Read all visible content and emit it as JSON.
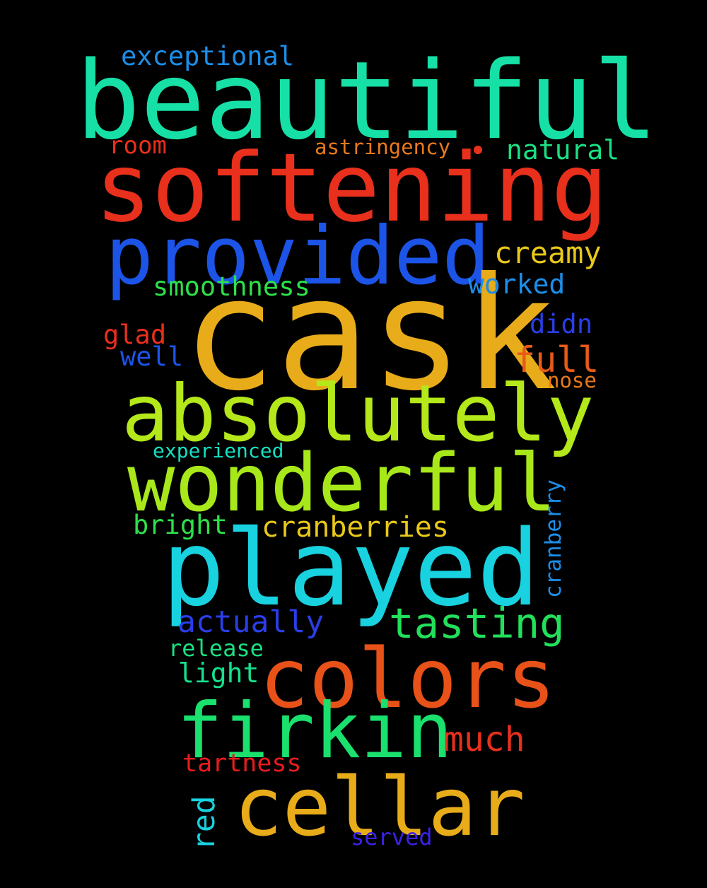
{
  "words": [
    {
      "text": "beautiful",
      "color": "#16e0a6"
    },
    {
      "text": "softening",
      "color": "#e8301c"
    },
    {
      "text": "provided",
      "color": "#1c54e8"
    },
    {
      "text": "cask",
      "color": "#e8ac1a"
    },
    {
      "text": "absolutely",
      "color": "#b4e81a"
    },
    {
      "text": "wonderful",
      "color": "#a8e81a"
    },
    {
      "text": "played",
      "color": "#18d2e0"
    },
    {
      "text": "colors",
      "color": "#e85218"
    },
    {
      "text": "firkin",
      "color": "#1ae06e"
    },
    {
      "text": "cellar",
      "color": "#e8ac1a"
    },
    {
      "text": "tasting",
      "color": "#22e05a"
    },
    {
      "text": "exceptional",
      "color": "#1c8ee8"
    },
    {
      "text": "room",
      "color": "#e8301c"
    },
    {
      "text": "astringency",
      "color": "#e87a1c"
    },
    {
      "text": "natural",
      "color": "#1ae082"
    },
    {
      "text": "creamy",
      "color": "#e8c81a"
    },
    {
      "text": "smoothness",
      "color": "#2ee04a"
    },
    {
      "text": "worked",
      "color": "#1c8ee8"
    },
    {
      "text": "didn",
      "color": "#2a3ee8"
    },
    {
      "text": "glad",
      "color": "#e8301c"
    },
    {
      "text": "well",
      "color": "#1c54e8"
    },
    {
      "text": "full",
      "color": "#e85a18"
    },
    {
      "text": "nose",
      "color": "#e87a1c"
    },
    {
      "text": "experienced",
      "color": "#16e0c2"
    },
    {
      "text": "bright",
      "color": "#2ee04a"
    },
    {
      "text": "cranberries",
      "color": "#e8c81a"
    },
    {
      "text": "cranberry",
      "color": "#1c8ee8"
    },
    {
      "text": "actually",
      "color": "#2a3ee8"
    },
    {
      "text": "release",
      "color": "#1ae082"
    },
    {
      "text": "light",
      "color": "#16e08e"
    },
    {
      "text": "much",
      "color": "#e8301c"
    },
    {
      "text": "tartness",
      "color": "#e81c1c"
    },
    {
      "text": "red",
      "color": "#18d2e0"
    },
    {
      "text": "served",
      "color": "#3a22e8"
    },
    {
      "text": "dot",
      "color": "#e8301c"
    }
  ]
}
